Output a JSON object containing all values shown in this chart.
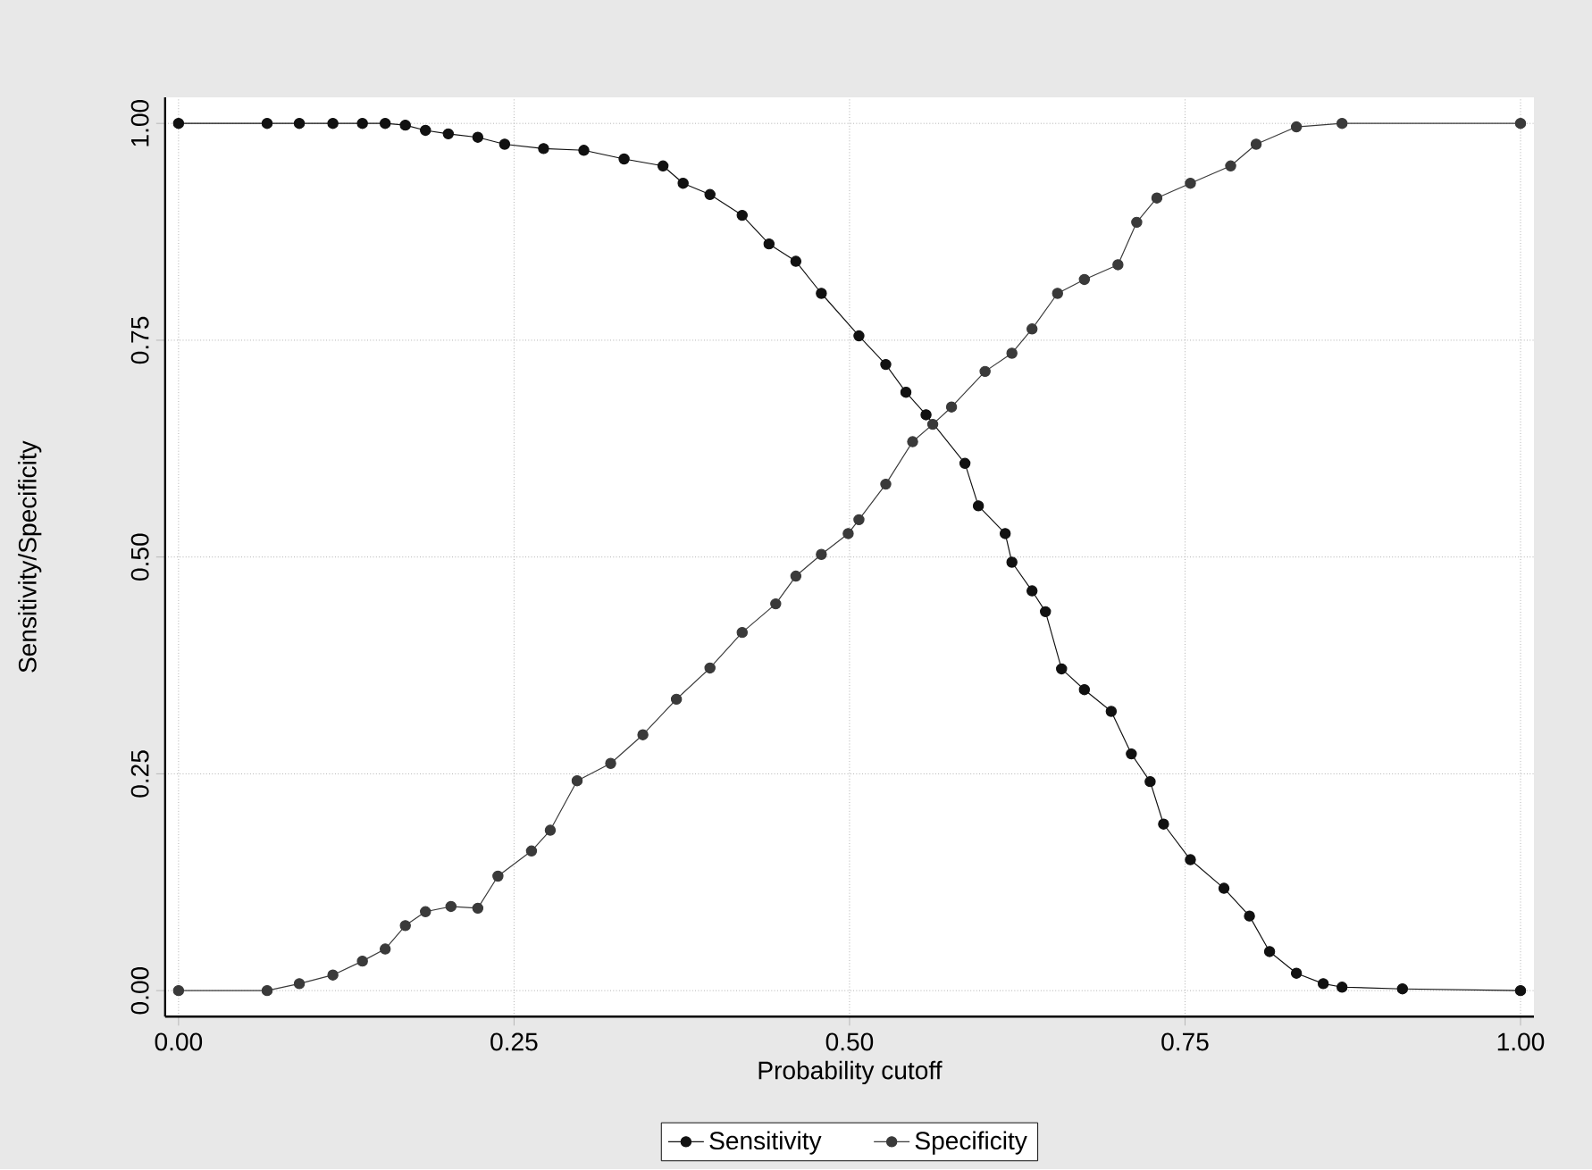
{
  "chart_data": {
    "type": "line",
    "xlabel": "Probability cutoff",
    "ylabel": "Sensitivity/Specificity",
    "xlim": [
      0,
      1
    ],
    "ylim": [
      0,
      1
    ],
    "xticks": [
      {
        "value": 0,
        "label": "0.00"
      },
      {
        "value": 0.25,
        "label": "0.25"
      },
      {
        "value": 0.5,
        "label": "0.50"
      },
      {
        "value": 0.75,
        "label": "0.75"
      },
      {
        "value": 1,
        "label": "1.00"
      }
    ],
    "yticks": [
      {
        "value": 0,
        "label": "0.00"
      },
      {
        "value": 0.25,
        "label": "0.25"
      },
      {
        "value": 0.5,
        "label": "0.50"
      },
      {
        "value": 0.75,
        "label": "0.75"
      },
      {
        "value": 1,
        "label": "1.00"
      }
    ],
    "grid": true,
    "legend": "bottom",
    "marker": "circle",
    "line_style": "solid",
    "series": [
      {
        "name": "Sensitivity",
        "color": "#111111",
        "x": [
          0,
          0.066,
          0.09,
          0.115,
          0.137,
          0.154,
          0.169,
          0.184,
          0.201,
          0.223,
          0.243,
          0.272,
          0.302,
          0.332,
          0.361,
          0.376,
          0.396,
          0.42,
          0.44,
          0.46,
          0.479,
          0.507,
          0.527,
          0.542,
          0.557,
          0.586,
          0.596,
          0.616,
          0.621,
          0.636,
          0.646,
          0.658,
          0.675,
          0.695,
          0.71,
          0.724,
          0.734,
          0.754,
          0.779,
          0.798,
          0.813,
          0.833,
          0.853,
          0.867,
          0.912,
          1.0
        ],
        "values": [
          1,
          1,
          1,
          1,
          1,
          1,
          0.998,
          0.992,
          0.988,
          0.984,
          0.976,
          0.971,
          0.969,
          0.959,
          0.951,
          0.931,
          0.918,
          0.894,
          0.861,
          0.841,
          0.804,
          0.755,
          0.722,
          0.69,
          0.664,
          0.608,
          0.559,
          0.527,
          0.494,
          0.461,
          0.437,
          0.371,
          0.347,
          0.322,
          0.273,
          0.241,
          0.192,
          0.151,
          0.118,
          0.086,
          0.045,
          0.02,
          0.008,
          0.004,
          0.002,
          0
        ]
      },
      {
        "name": "Specificity",
        "color": "#3a3a3a",
        "x": [
          0,
          0.066,
          0.09,
          0.115,
          0.137,
          0.154,
          0.169,
          0.184,
          0.203,
          0.223,
          0.238,
          0.263,
          0.277,
          0.297,
          0.322,
          0.346,
          0.371,
          0.396,
          0.42,
          0.445,
          0.46,
          0.479,
          0.499,
          0.507,
          0.527,
          0.547,
          0.562,
          0.576,
          0.601,
          0.621,
          0.636,
          0.655,
          0.675,
          0.7,
          0.714,
          0.729,
          0.754,
          0.784,
          0.803,
          0.833,
          0.867,
          1.0
        ],
        "values": [
          0,
          0,
          0.008,
          0.018,
          0.034,
          0.048,
          0.075,
          0.091,
          0.097,
          0.095,
          0.132,
          0.161,
          0.185,
          0.242,
          0.262,
          0.295,
          0.336,
          0.372,
          0.413,
          0.446,
          0.478,
          0.503,
          0.527,
          0.543,
          0.584,
          0.633,
          0.653,
          0.673,
          0.714,
          0.735,
          0.763,
          0.804,
          0.82,
          0.837,
          0.886,
          0.914,
          0.931,
          0.951,
          0.976,
          0.996,
          1,
          1
        ]
      }
    ]
  }
}
